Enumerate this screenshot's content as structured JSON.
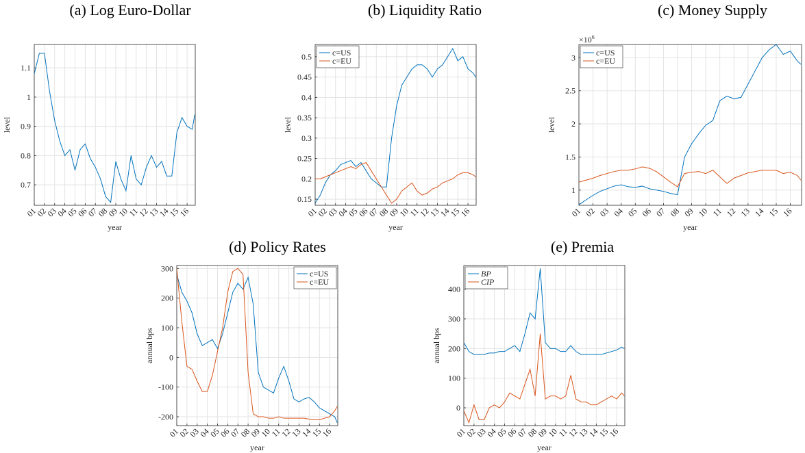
{
  "chart_data": [
    {
      "type": "line",
      "title": "(a) Log Euro-Dollar",
      "xlabel": "year",
      "ylabel": "level",
      "x": [
        1,
        1.5,
        2,
        2.5,
        3,
        3.5,
        4,
        4.5,
        5,
        5.5,
        6,
        6.5,
        7,
        7.5,
        8,
        8.5,
        9,
        9.5,
        10,
        10.5,
        11,
        11.5,
        12,
        12.5,
        13,
        13.5,
        14,
        14.5,
        15,
        15.5,
        16,
        16.5,
        16.75
      ],
      "series": [
        {
          "name": null,
          "color": "#0072bd",
          "values": [
            1.08,
            1.15,
            1.15,
            1.02,
            0.92,
            0.85,
            0.8,
            0.82,
            0.75,
            0.82,
            0.84,
            0.79,
            0.76,
            0.72,
            0.66,
            0.64,
            0.78,
            0.72,
            0.68,
            0.8,
            0.72,
            0.7,
            0.76,
            0.8,
            0.76,
            0.78,
            0.73,
            0.73,
            0.88,
            0.93,
            0.9,
            0.89,
            0.94
          ]
        }
      ],
      "xlim": [
        1,
        16.8
      ],
      "ylim": [
        0.63,
        1.18
      ],
      "xticks": [
        {
          "value": 1,
          "label": "01"
        },
        {
          "value": 2,
          "label": "02"
        },
        {
          "value": 3,
          "label": "03"
        },
        {
          "value": 4,
          "label": "04"
        },
        {
          "value": 5,
          "label": "05"
        },
        {
          "value": 6,
          "label": "06"
        },
        {
          "value": 7,
          "label": "07"
        },
        {
          "value": 8,
          "label": "08"
        },
        {
          "value": 9,
          "label": "09"
        },
        {
          "value": 10,
          "label": "10"
        },
        {
          "value": 11,
          "label": "11"
        },
        {
          "value": 12,
          "label": "12"
        },
        {
          "value": 13,
          "label": "13"
        },
        {
          "value": 14,
          "label": "14"
        },
        {
          "value": 15,
          "label": "15"
        },
        {
          "value": 16,
          "label": "16"
        }
      ],
      "yticks": [
        0.7,
        0.8,
        0.9,
        1,
        1.1
      ],
      "grid": true
    },
    {
      "type": "line",
      "title": "(b) Liquidity Ratio",
      "xlabel": "year",
      "ylabel": "level",
      "x": [
        1,
        1.5,
        2,
        2.5,
        3,
        3.5,
        4,
        4.5,
        5,
        5.5,
        6,
        6.5,
        7,
        7.5,
        8,
        8.5,
        9,
        9.5,
        10,
        10.5,
        11,
        11.5,
        12,
        12.5,
        13,
        13.5,
        14,
        14.5,
        15,
        15.5,
        16,
        16.5,
        16.75
      ],
      "series": [
        {
          "name": "c=US",
          "color": "#0072bd",
          "values": [
            0.14,
            0.16,
            0.19,
            0.21,
            0.22,
            0.235,
            0.24,
            0.245,
            0.23,
            0.24,
            0.22,
            0.2,
            0.19,
            0.18,
            0.18,
            0.3,
            0.38,
            0.43,
            0.45,
            0.47,
            0.48,
            0.48,
            0.47,
            0.45,
            0.47,
            0.48,
            0.5,
            0.52,
            0.49,
            0.5,
            0.47,
            0.46,
            0.45
          ]
        },
        {
          "name": "c=EU",
          "color": "#d95319",
          "values": [
            0.2,
            0.2,
            0.205,
            0.21,
            0.215,
            0.22,
            0.225,
            0.23,
            0.225,
            0.235,
            0.24,
            0.22,
            0.2,
            0.18,
            0.16,
            0.14,
            0.15,
            0.17,
            0.18,
            0.19,
            0.17,
            0.16,
            0.165,
            0.175,
            0.18,
            0.19,
            0.195,
            0.2,
            0.21,
            0.215,
            0.215,
            0.21,
            0.205
          ]
        }
      ],
      "xlim": [
        1,
        16.8
      ],
      "ylim": [
        0.135,
        0.53
      ],
      "xticks": [
        {
          "value": 1,
          "label": "01"
        },
        {
          "value": 2,
          "label": "02"
        },
        {
          "value": 3,
          "label": "03"
        },
        {
          "value": 4,
          "label": "04"
        },
        {
          "value": 5,
          "label": "05"
        },
        {
          "value": 6,
          "label": "06"
        },
        {
          "value": 7,
          "label": "07"
        },
        {
          "value": 8,
          "label": "08"
        },
        {
          "value": 9,
          "label": "09"
        },
        {
          "value": 10,
          "label": "10"
        },
        {
          "value": 11,
          "label": "11"
        },
        {
          "value": 12,
          "label": "12"
        },
        {
          "value": 13,
          "label": "13"
        },
        {
          "value": 14,
          "label": "14"
        },
        {
          "value": 15,
          "label": "15"
        },
        {
          "value": 16,
          "label": "16"
        }
      ],
      "yticks": [
        0.15,
        0.2,
        0.25,
        0.3,
        0.35,
        0.4,
        0.45,
        0.5
      ],
      "grid": true,
      "legend": "upper left"
    },
    {
      "type": "line",
      "title": "(c) Money Supply",
      "xlabel": "year",
      "ylabel": "level",
      "y_exponent_base": "×10",
      "y_exponent": 6,
      "x": [
        1,
        1.5,
        2,
        2.5,
        3,
        3.5,
        4,
        4.5,
        5,
        5.5,
        6,
        6.5,
        7,
        7.5,
        8,
        8.5,
        9,
        9.5,
        10,
        10.5,
        11,
        11.5,
        12,
        12.5,
        13,
        13.5,
        14,
        14.5,
        15,
        15.5,
        16,
        16.5,
        16.75
      ],
      "series": [
        {
          "name": "c=US",
          "color": "#0072bd",
          "values": [
            0.78,
            0.85,
            0.92,
            0.98,
            1.02,
            1.06,
            1.08,
            1.05,
            1.04,
            1.06,
            1.02,
            1.0,
            0.98,
            0.95,
            0.93,
            1.5,
            1.7,
            1.85,
            1.98,
            2.05,
            2.35,
            2.42,
            2.38,
            2.4,
            2.6,
            2.8,
            3.0,
            3.12,
            3.2,
            3.05,
            3.1,
            2.95,
            2.9
          ]
        },
        {
          "name": "c=EU",
          "color": "#d95319",
          "values": [
            1.12,
            1.15,
            1.18,
            1.22,
            1.25,
            1.28,
            1.3,
            1.3,
            1.32,
            1.35,
            1.33,
            1.28,
            1.2,
            1.12,
            1.05,
            1.25,
            1.27,
            1.28,
            1.25,
            1.3,
            1.2,
            1.1,
            1.18,
            1.22,
            1.26,
            1.28,
            1.3,
            1.3,
            1.3,
            1.25,
            1.27,
            1.22,
            1.15
          ]
        }
      ],
      "xlim": [
        1,
        16.8
      ],
      "ylim": [
        0.77,
        3.2
      ],
      "xticks": [
        {
          "value": 1,
          "label": "01"
        },
        {
          "value": 2,
          "label": "02"
        },
        {
          "value": 3,
          "label": "03"
        },
        {
          "value": 4,
          "label": "04"
        },
        {
          "value": 5,
          "label": "05"
        },
        {
          "value": 6,
          "label": "06"
        },
        {
          "value": 7,
          "label": "07"
        },
        {
          "value": 8,
          "label": "08"
        },
        {
          "value": 9,
          "label": "09"
        },
        {
          "value": 10,
          "label": "10"
        },
        {
          "value": 11,
          "label": "11"
        },
        {
          "value": 12,
          "label": "12"
        },
        {
          "value": 13,
          "label": "13"
        },
        {
          "value": 14,
          "label": "14"
        },
        {
          "value": 15,
          "label": "15"
        },
        {
          "value": 16,
          "label": "16"
        }
      ],
      "yticks": [
        1,
        1.5,
        2,
        2.5,
        3
      ],
      "grid": true,
      "legend": "upper left"
    },
    {
      "type": "line",
      "title": "(d) Policy Rates",
      "xlabel": "year",
      "ylabel": "annual bps",
      "x": [
        1,
        1.5,
        2,
        2.5,
        3,
        3.5,
        4,
        4.5,
        5,
        5.5,
        6,
        6.5,
        7,
        7.5,
        8,
        8.5,
        9,
        9.5,
        10,
        10.5,
        11,
        11.5,
        12,
        12.5,
        13,
        13.5,
        14,
        14.5,
        15,
        15.5,
        16,
        16.5,
        16.75
      ],
      "series": [
        {
          "name": "c=US",
          "color": "#0072bd",
          "values": [
            280,
            220,
            190,
            150,
            80,
            40,
            50,
            60,
            30,
            80,
            150,
            220,
            250,
            230,
            270,
            180,
            -50,
            -100,
            -110,
            -120,
            -70,
            -30,
            -80,
            -140,
            -150,
            -140,
            -135,
            -150,
            -170,
            -180,
            -190,
            -200,
            -220
          ]
        },
        {
          "name": "c=EU",
          "color": "#d95319",
          "values": [
            300,
            120,
            -30,
            -40,
            -80,
            -115,
            -115,
            -60,
            20,
            100,
            220,
            290,
            300,
            280,
            -50,
            -190,
            -200,
            -200,
            -205,
            -205,
            -200,
            -205,
            -205,
            -205,
            -205,
            -205,
            -208,
            -210,
            -210,
            -205,
            -200,
            -180,
            -165
          ]
        }
      ],
      "xlim": [
        1,
        16.8
      ],
      "ylim": [
        -230,
        310
      ],
      "xticks": [
        {
          "value": 1,
          "label": "01"
        },
        {
          "value": 2,
          "label": "02"
        },
        {
          "value": 3,
          "label": "03"
        },
        {
          "value": 4,
          "label": "04"
        },
        {
          "value": 5,
          "label": "05"
        },
        {
          "value": 6,
          "label": "06"
        },
        {
          "value": 7,
          "label": "07"
        },
        {
          "value": 8,
          "label": "08"
        },
        {
          "value": 9,
          "label": "09"
        },
        {
          "value": 10,
          "label": "10"
        },
        {
          "value": 11,
          "label": "11"
        },
        {
          "value": 12,
          "label": "12"
        },
        {
          "value": 13,
          "label": "13"
        },
        {
          "value": 14,
          "label": "14"
        },
        {
          "value": 15,
          "label": "15"
        },
        {
          "value": 16,
          "label": "16"
        }
      ],
      "yticks": [
        -200,
        -100,
        0,
        100,
        200,
        300
      ],
      "grid": true,
      "legend": "upper right"
    },
    {
      "type": "line",
      "title": "(e) Premia",
      "xlabel": "year",
      "ylabel": "annual bps",
      "x": [
        1,
        1.5,
        2,
        2.5,
        3,
        3.5,
        4,
        4.5,
        5,
        5.5,
        6,
        6.5,
        7,
        7.5,
        8,
        8.5,
        9,
        9.5,
        10,
        10.5,
        11,
        11.5,
        12,
        12.5,
        13,
        13.5,
        14,
        14.5,
        15,
        15.5,
        16,
        16.5,
        16.75
      ],
      "series": [
        {
          "name": "BP",
          "color": "#0072bd",
          "values": [
            220,
            190,
            180,
            180,
            180,
            185,
            185,
            190,
            190,
            200,
            210,
            190,
            250,
            320,
            300,
            470,
            220,
            200,
            200,
            190,
            190,
            210,
            190,
            180,
            180,
            180,
            180,
            180,
            185,
            190,
            195,
            205,
            200
          ]
        },
        {
          "name": "CIP",
          "color": "#d95319",
          "values": [
            -10,
            -50,
            10,
            -40,
            -40,
            0,
            10,
            0,
            20,
            50,
            40,
            30,
            80,
            130,
            40,
            250,
            30,
            40,
            40,
            30,
            40,
            110,
            30,
            20,
            20,
            10,
            10,
            20,
            30,
            40,
            30,
            50,
            40
          ]
        }
      ],
      "xlim": [
        1,
        16.8
      ],
      "ylim": [
        -60,
        480
      ],
      "xticks": [
        {
          "value": 1,
          "label": "01"
        },
        {
          "value": 2,
          "label": "02"
        },
        {
          "value": 3,
          "label": "03"
        },
        {
          "value": 4,
          "label": "04"
        },
        {
          "value": 5,
          "label": "05"
        },
        {
          "value": 6,
          "label": "06"
        },
        {
          "value": 7,
          "label": "07"
        },
        {
          "value": 8,
          "label": "08"
        },
        {
          "value": 9,
          "label": "09"
        },
        {
          "value": 10,
          "label": "10"
        },
        {
          "value": 11,
          "label": "11"
        },
        {
          "value": 12,
          "label": "12"
        },
        {
          "value": 13,
          "label": "13"
        },
        {
          "value": 14,
          "label": "14"
        },
        {
          "value": 15,
          "label": "15"
        },
        {
          "value": 16,
          "label": "16"
        }
      ],
      "yticks": [
        0,
        100,
        200,
        300,
        400
      ],
      "grid": true,
      "legend": "upper left"
    }
  ]
}
